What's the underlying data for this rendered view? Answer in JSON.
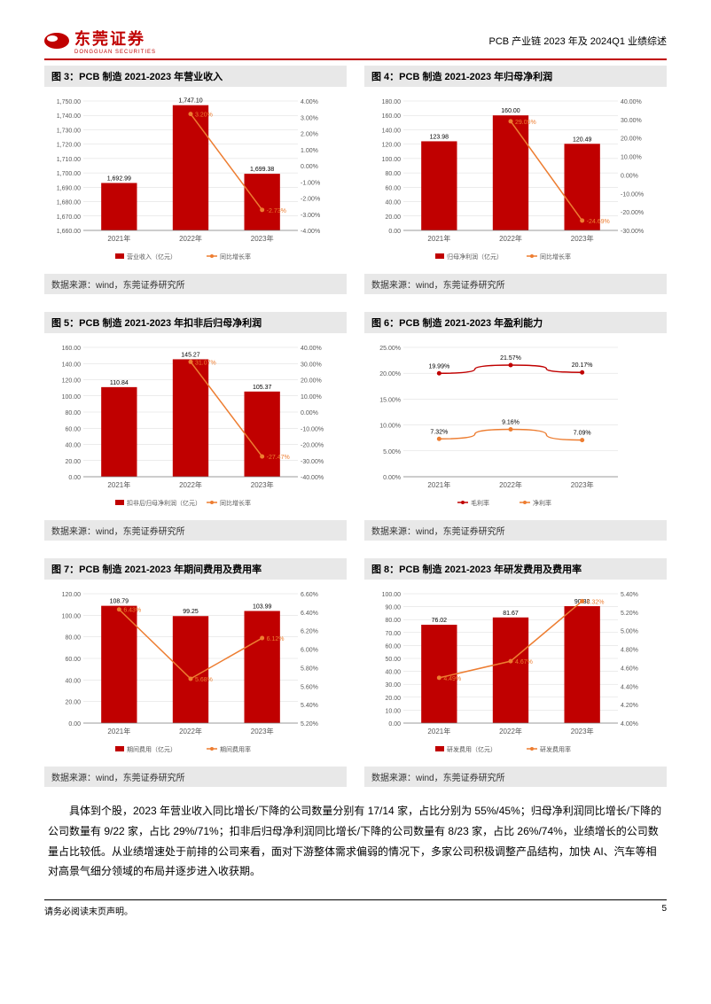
{
  "header": {
    "logo_text": "东莞证券",
    "logo_sub": "DONGGUAN SECURITIES",
    "right_text": "PCB 产业链 2023 年及 2024Q1 业绩综述"
  },
  "charts": [
    {
      "title": "图 3：PCB 制造 2021-2023 年营业收入",
      "source": "数据来源：wind，东莞证券研究所",
      "type": "bar_line",
      "categories": [
        "2021年",
        "2022年",
        "2023年"
      ],
      "bars": [
        1692.99,
        1747.1,
        1699.38
      ],
      "bar_labels": [
        "1,692.99",
        "1,747.10",
        "1,699.38"
      ],
      "line": [
        null,
        3.2,
        -2.73
      ],
      "line_labels": [
        "",
        "3.20%",
        "-2.73%"
      ],
      "y1_min": 1660,
      "y1_max": 1750,
      "y1_step": 10,
      "y1_ticks": [
        "1,660.00",
        "1,670.00",
        "1,680.00",
        "1,690.00",
        "1,700.00",
        "1,710.00",
        "1,720.00",
        "1,730.00",
        "1,740.00",
        "1,750.00"
      ],
      "y2_min": -4,
      "y2_max": 4,
      "y2_step": 1,
      "y2_ticks": [
        "-4.00%",
        "-3.00%",
        "-2.00%",
        "-1.00%",
        "0.00%",
        "1.00%",
        "2.00%",
        "3.00%",
        "4.00%"
      ],
      "bar_color": "#c00000",
      "line_color": "#ed7d31",
      "legend_bar": "营业收入（亿元）",
      "legend_line": "同比增长率"
    },
    {
      "title": "图 4：PCB 制造 2021-2023 年归母净利润",
      "source": "数据来源：wind，东莞证券研究所",
      "type": "bar_line",
      "categories": [
        "2021年",
        "2022年",
        "2023年"
      ],
      "bars": [
        123.98,
        160.0,
        120.49
      ],
      "bar_labels": [
        "123.98",
        "160.00",
        "120.49"
      ],
      "line": [
        null,
        29.05,
        -24.69
      ],
      "line_labels": [
        "",
        "29.05%",
        "-24.69%"
      ],
      "y1_min": 0,
      "y1_max": 180,
      "y1_step": 20,
      "y1_ticks": [
        "0.00",
        "20.00",
        "40.00",
        "60.00",
        "80.00",
        "100.00",
        "120.00",
        "140.00",
        "160.00",
        "180.00"
      ],
      "y2_min": -30,
      "y2_max": 40,
      "y2_step": 10,
      "y2_ticks": [
        "-30.00%",
        "-20.00%",
        "-10.00%",
        "0.00%",
        "10.00%",
        "20.00%",
        "30.00%",
        "40.00%"
      ],
      "bar_color": "#c00000",
      "line_color": "#ed7d31",
      "legend_bar": "归母净利润（亿元）",
      "legend_line": "同比增长率"
    },
    {
      "title": "图 5：PCB 制造 2021-2023 年扣非后归母净利润",
      "source": "数据来源：wind，东莞证券研究所",
      "type": "bar_line",
      "categories": [
        "2021年",
        "2022年",
        "2023年"
      ],
      "bars": [
        110.84,
        145.27,
        105.37
      ],
      "bar_labels": [
        "110.84",
        "145.27",
        "105.37"
      ],
      "line": [
        null,
        31.07,
        -27.47
      ],
      "line_labels": [
        "",
        "31.07%",
        "-27.47%"
      ],
      "y1_min": 0,
      "y1_max": 160,
      "y1_step": 20,
      "y1_ticks": [
        "0.00",
        "20.00",
        "40.00",
        "60.00",
        "80.00",
        "100.00",
        "120.00",
        "140.00",
        "160.00"
      ],
      "y2_min": -40,
      "y2_max": 40,
      "y2_step": 10,
      "y2_ticks": [
        "-40.00%",
        "-30.00%",
        "-20.00%",
        "-10.00%",
        "0.00%",
        "10.00%",
        "20.00%",
        "30.00%",
        "40.00%"
      ],
      "bar_color": "#c00000",
      "line_color": "#ed7d31",
      "legend_bar": "扣非后归母净利润（亿元）",
      "legend_line": "同比增长率"
    },
    {
      "title": "图 6：PCB 制造 2021-2023 年盈利能力",
      "source": "数据来源：wind，东莞证券研究所",
      "type": "two_line",
      "categories": [
        "2021年",
        "2022年",
        "2023年"
      ],
      "line1": [
        19.99,
        21.57,
        20.17
      ],
      "line1_labels": [
        "19.99%",
        "21.57%",
        "20.17%"
      ],
      "line2": [
        7.32,
        9.16,
        7.09
      ],
      "line2_labels": [
        "7.32%",
        "9.16%",
        "7.09%"
      ],
      "y1_min": 0,
      "y1_max": 25,
      "y1_step": 5,
      "y1_ticks": [
        "0.00%",
        "5.00%",
        "10.00%",
        "15.00%",
        "20.00%",
        "25.00%"
      ],
      "line1_color": "#c00000",
      "line2_color": "#ed7d31",
      "legend_line1": "毛利率",
      "legend_line2": "净利率"
    },
    {
      "title": "图 7：PCB 制造 2021-2023 年期间费用及费用率",
      "source": "数据来源：wind，东莞证券研究所",
      "type": "bar_line",
      "categories": [
        "2021年",
        "2022年",
        "2023年"
      ],
      "bars": [
        108.79,
        99.25,
        103.99
      ],
      "bar_labels": [
        "108.79",
        "99.25",
        "103.99"
      ],
      "line": [
        6.43,
        5.68,
        6.12
      ],
      "line_labels": [
        "6.43%",
        "5.68%",
        "6.12%"
      ],
      "y1_min": 0,
      "y1_max": 120,
      "y1_step": 20,
      "y1_ticks": [
        "0.00",
        "20.00",
        "40.00",
        "60.00",
        "80.00",
        "100.00",
        "120.00"
      ],
      "y2_min": 5.2,
      "y2_max": 6.6,
      "y2_step": 0.2,
      "y2_ticks": [
        "5.20%",
        "5.40%",
        "5.60%",
        "5.80%",
        "6.00%",
        "6.20%",
        "6.40%",
        "6.60%"
      ],
      "bar_color": "#c00000",
      "line_color": "#ed7d31",
      "legend_bar": "期间费用（亿元）",
      "legend_line": "期间费用率"
    },
    {
      "title": "图 8：PCB 制造 2021-2023 年研发费用及费用率",
      "source": "数据来源：wind，东莞证券研究所",
      "type": "bar_line",
      "categories": [
        "2021年",
        "2022年",
        "2023年"
      ],
      "bars": [
        76.02,
        81.67,
        90.38
      ],
      "bar_labels": [
        "76.02",
        "81.67",
        "90.38"
      ],
      "line": [
        4.49,
        4.67,
        5.32
      ],
      "line_labels": [
        "4.49%",
        "4.67%",
        "5.32%"
      ],
      "y1_min": 0,
      "y1_max": 100,
      "y1_step": 10,
      "y1_ticks": [
        "0.00",
        "10.00",
        "20.00",
        "30.00",
        "40.00",
        "50.00",
        "60.00",
        "70.00",
        "80.00",
        "90.00",
        "100.00"
      ],
      "y2_min": 4.0,
      "y2_max": 5.4,
      "y2_step": 0.2,
      "y2_ticks": [
        "4.00%",
        "4.20%",
        "4.40%",
        "4.60%",
        "4.80%",
        "5.00%",
        "5.20%",
        "5.40%"
      ],
      "bar_color": "#c00000",
      "line_color": "#ed7d31",
      "legend_bar": "研发费用（亿元）",
      "legend_line": "研发费用率"
    }
  ],
  "body_text": "具体到个股，2023 年营业收入同比增长/下降的公司数量分别有 17/14 家，占比分别为 55%/45%；归母净利润同比增长/下降的公司数量有 9/22 家，占比 29%/71%；扣非后归母净利润同比增长/下降的公司数量有 8/23 家，占比 26%/74%，业绩增长的公司数量占比较低。从业绩增速处于前排的公司来看，面对下游整体需求偏弱的情况下，多家公司积极调整产品结构，加快 AI、汽车等相对高景气细分领域的布局并逐步进入收获期。",
  "footer": {
    "left": "请务必阅读末页声明。",
    "page": "5"
  }
}
